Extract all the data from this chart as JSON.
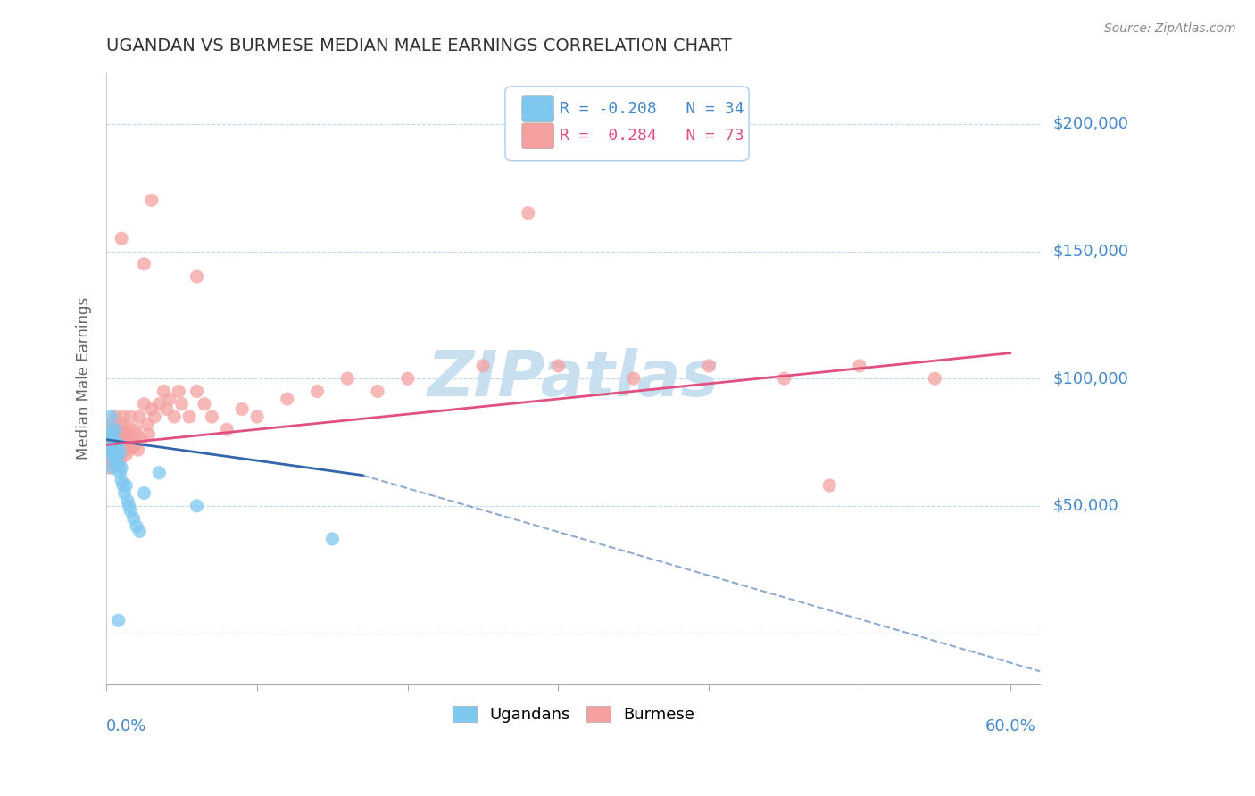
{
  "title": "UGANDAN VS BURMESE MEDIAN MALE EARNINGS CORRELATION CHART",
  "source": "Source: ZipAtlas.com",
  "ylabel": "Median Male Earnings",
  "xlim": [
    0.0,
    0.62
  ],
  "ylim": [
    -20000,
    220000
  ],
  "legend1_r": "-0.208",
  "legend1_n": "34",
  "legend2_r": "0.284",
  "legend2_n": "73",
  "ugandan_color": "#7ec8f0",
  "burmese_color": "#f5a0a0",
  "ugandan_line_color": "#3366aa",
  "burmese_line_color": "#e05080",
  "grid_color": "#b8d4f0",
  "title_color": "#333333",
  "axis_label_color": "#4488cc",
  "watermark_color": "#c8dff0",
  "ugandan_x": [
    0.001,
    0.002,
    0.002,
    0.003,
    0.003,
    0.004,
    0.004,
    0.005,
    0.005,
    0.005,
    0.006,
    0.006,
    0.007,
    0.007,
    0.008,
    0.008,
    0.009,
    0.009,
    0.01,
    0.01,
    0.011,
    0.012,
    0.013,
    0.014,
    0.015,
    0.016,
    0.018,
    0.02,
    0.022,
    0.025,
    0.035,
    0.06,
    0.15,
    0.008
  ],
  "ugandan_y": [
    75000,
    80000,
    72000,
    85000,
    78000,
    70000,
    65000,
    73000,
    68000,
    76000,
    72000,
    80000,
    74000,
    69000,
    66000,
    74000,
    71000,
    63000,
    65000,
    60000,
    58000,
    55000,
    58000,
    52000,
    50000,
    48000,
    45000,
    42000,
    40000,
    55000,
    63000,
    50000,
    37000,
    5000
  ],
  "burmese_x": [
    0.001,
    0.002,
    0.002,
    0.003,
    0.003,
    0.004,
    0.004,
    0.005,
    0.005,
    0.006,
    0.006,
    0.007,
    0.007,
    0.008,
    0.008,
    0.009,
    0.009,
    0.01,
    0.01,
    0.011,
    0.011,
    0.012,
    0.012,
    0.013,
    0.013,
    0.014,
    0.015,
    0.015,
    0.016,
    0.017,
    0.018,
    0.019,
    0.02,
    0.021,
    0.022,
    0.023,
    0.025,
    0.027,
    0.028,
    0.03,
    0.032,
    0.035,
    0.038,
    0.04,
    0.042,
    0.045,
    0.048,
    0.05,
    0.055,
    0.06,
    0.065,
    0.07,
    0.08,
    0.09,
    0.1,
    0.12,
    0.14,
    0.16,
    0.18,
    0.2,
    0.25,
    0.3,
    0.35,
    0.4,
    0.45,
    0.5,
    0.55,
    0.025,
    0.28,
    0.48,
    0.03,
    0.06,
    0.01
  ],
  "burmese_y": [
    72000,
    78000,
    65000,
    82000,
    70000,
    75000,
    68000,
    80000,
    72000,
    76000,
    85000,
    73000,
    80000,
    70000,
    78000,
    75000,
    68000,
    82000,
    72000,
    76000,
    85000,
    73000,
    80000,
    78000,
    70000,
    75000,
    80000,
    72000,
    85000,
    76000,
    73000,
    80000,
    78000,
    72000,
    85000,
    76000,
    90000,
    82000,
    78000,
    88000,
    85000,
    90000,
    95000,
    88000,
    92000,
    85000,
    95000,
    90000,
    85000,
    95000,
    90000,
    85000,
    80000,
    88000,
    85000,
    92000,
    95000,
    100000,
    95000,
    100000,
    105000,
    105000,
    100000,
    105000,
    100000,
    105000,
    100000,
    145000,
    165000,
    58000,
    170000,
    140000,
    155000
  ]
}
